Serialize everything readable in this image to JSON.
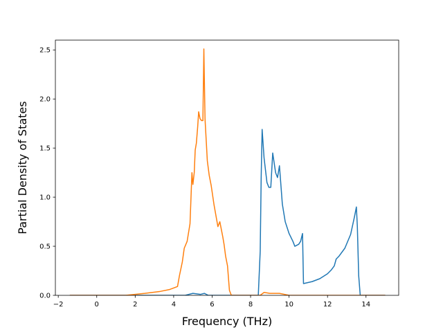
{
  "chart_data": {
    "type": "line",
    "title": "",
    "xlabel": "Frequency (THz)",
    "ylabel": "Partial Density of States",
    "xlim": [
      -2.15,
      15.7
    ],
    "ylim": [
      0.0,
      2.6
    ],
    "xticks": [
      -2,
      0,
      2,
      4,
      6,
      8,
      10,
      12,
      14
    ],
    "xtick_labels": [
      "−2",
      "0",
      "2",
      "4",
      "6",
      "8",
      "10",
      "12",
      "14"
    ],
    "yticks": [
      0.0,
      0.5,
      1.0,
      1.5,
      2.0,
      2.5
    ],
    "ytick_labels": [
      "0.0",
      "0.5",
      "1.0",
      "1.5",
      "2.0",
      "2.5"
    ],
    "grid": false,
    "legend": false,
    "series": [
      {
        "color": "#1f77b4",
        "x": [
          -1.4,
          4.6,
          5.0,
          5.4,
          5.6,
          5.8,
          6.2,
          6.6,
          8.4,
          8.5,
          8.55,
          8.6,
          8.7,
          8.85,
          8.95,
          9.05,
          9.15,
          9.3,
          9.4,
          9.5,
          9.65,
          9.8,
          10.0,
          10.2,
          10.3,
          10.5,
          10.6,
          10.7,
          10.75,
          11.2,
          11.6,
          12.0,
          12.2,
          12.35,
          12.45,
          12.6,
          12.9,
          13.2,
          13.4,
          13.5,
          13.55,
          13.62,
          13.7,
          15.0
        ],
        "y": [
          0.0,
          0.0,
          0.02,
          0.01,
          0.02,
          0.0,
          0.0,
          0.0,
          0.0,
          0.45,
          1.2,
          1.69,
          1.4,
          1.15,
          1.1,
          1.1,
          1.45,
          1.25,
          1.2,
          1.32,
          0.93,
          0.75,
          0.63,
          0.55,
          0.5,
          0.52,
          0.55,
          0.63,
          0.12,
          0.14,
          0.17,
          0.22,
          0.26,
          0.3,
          0.37,
          0.4,
          0.48,
          0.62,
          0.8,
          0.9,
          0.7,
          0.2,
          0.0,
          0.0
        ]
      },
      {
        "color": "#ff7f0e",
        "x": [
          -1.4,
          0.0,
          1.5,
          2.5,
          3.3,
          3.8,
          4.2,
          4.3,
          4.45,
          4.55,
          4.7,
          4.85,
          4.95,
          5.0,
          5.07,
          5.12,
          5.18,
          5.25,
          5.3,
          5.37,
          5.45,
          5.52,
          5.57,
          5.63,
          5.7,
          5.75,
          5.85,
          5.95,
          6.1,
          6.3,
          6.4,
          6.55,
          6.62,
          6.7,
          6.8,
          6.9,
          7.0,
          7.05,
          8.0,
          8.5,
          8.7,
          9.0,
          9.5,
          10.0,
          11.0,
          15.0
        ],
        "y": [
          0.0,
          0.0,
          0.0,
          0.02,
          0.04,
          0.06,
          0.09,
          0.2,
          0.34,
          0.48,
          0.55,
          0.73,
          1.25,
          1.13,
          1.25,
          1.48,
          1.55,
          1.72,
          1.87,
          1.8,
          1.78,
          1.78,
          2.51,
          1.8,
          1.55,
          1.37,
          1.22,
          1.12,
          0.92,
          0.7,
          0.75,
          0.6,
          0.52,
          0.4,
          0.3,
          0.05,
          0.0,
          0.0,
          0.0,
          0.0,
          0.03,
          0.02,
          0.02,
          0.0,
          0.0,
          0.0
        ]
      }
    ]
  }
}
